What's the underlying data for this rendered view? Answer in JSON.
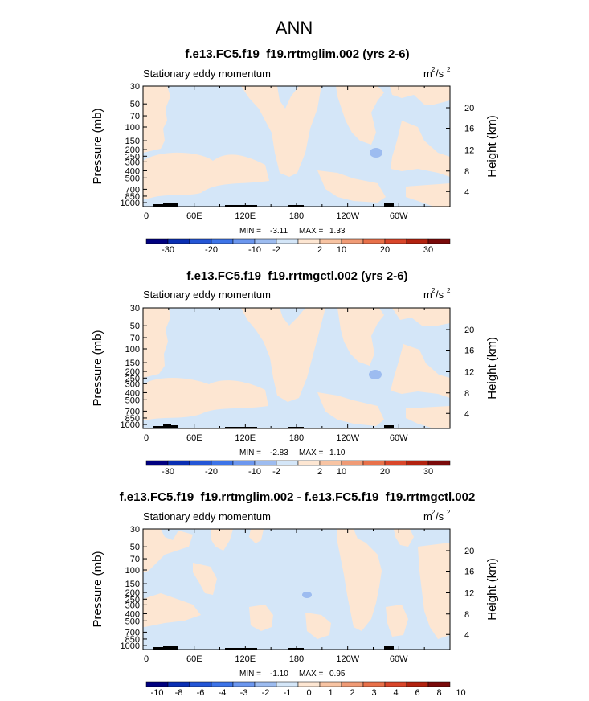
{
  "page_title": "ANN",
  "units_label": {
    "base": "m",
    "exp1": "2",
    "mid": "/s",
    "exp2": "2"
  },
  "colors": {
    "positive_fill": "#fde6d2",
    "negative_fill": "#d4e6f8",
    "strong_negative_fill": "#9dbcf0",
    "topography": "#000000",
    "colorbar": [
      "#00007f",
      "#0a2fb3",
      "#2456d6",
      "#3d74e8",
      "#6c97ef",
      "#9dbcf0",
      "#d4e6f8",
      "#fde6d2",
      "#f8c4a3",
      "#f09b76",
      "#e8714a",
      "#d9462a",
      "#b2220f",
      "#7a0a0a"
    ]
  },
  "chart_data": [
    {
      "type": "heatmap",
      "title": "f.e13.FC5.f19_f19.rrtmglim.002 (yrs 2-6)",
      "subtitle": "Stationary eddy momentum",
      "ylabel": "Pressure  (mb)",
      "ylabel_right": "Height  (km)",
      "x_tick_labels": [
        "0",
        "60E",
        "120E",
        "180",
        "120W",
        "60W"
      ],
      "y_tick_labels": [
        "30",
        "50",
        "70",
        "100",
        "150",
        "200",
        "250",
        "300",
        "400",
        "500",
        "700",
        "850",
        "1000"
      ],
      "y_right_tick_labels": [
        "20",
        "16",
        "12",
        "8",
        "4"
      ],
      "min_label": "MIN =",
      "min_value": "-3.11",
      "max_label": "MAX =",
      "max_value": "1.33",
      "colorbar_tick_labels": [
        "-30",
        "-20",
        "-10",
        "-2",
        "2",
        "10",
        "20",
        "30"
      ]
    },
    {
      "type": "heatmap",
      "title": "f.e13.FC5.f19_f19.rrtmgctl.002 (yrs 2-6)",
      "subtitle": "Stationary eddy momentum",
      "ylabel": "Pressure  (mb)",
      "ylabel_right": "Height  (km)",
      "x_tick_labels": [
        "0",
        "60E",
        "120E",
        "180",
        "120W",
        "60W"
      ],
      "y_tick_labels": [
        "30",
        "50",
        "70",
        "100",
        "150",
        "200",
        "250",
        "300",
        "400",
        "500",
        "700",
        "850",
        "1000"
      ],
      "y_right_tick_labels": [
        "20",
        "16",
        "12",
        "8",
        "4"
      ],
      "min_label": "MIN =",
      "min_value": "-2.83",
      "max_label": "MAX =",
      "max_value": "1.10",
      "colorbar_tick_labels": [
        "-30",
        "-20",
        "-10",
        "-2",
        "2",
        "10",
        "20",
        "30"
      ]
    },
    {
      "type": "heatmap",
      "title": "f.e13.FC5.f19_f19.rrtmglim.002 - f.e13.FC5.f19_f19.rrtmgctl.002",
      "subtitle": "Stationary eddy momentum",
      "ylabel": "Pressure  (mb)",
      "ylabel_right": "Height  (km)",
      "x_tick_labels": [
        "0",
        "60E",
        "120E",
        "180",
        "120W",
        "60W"
      ],
      "y_tick_labels": [
        "30",
        "50",
        "70",
        "100",
        "150",
        "200",
        "250",
        "300",
        "400",
        "500",
        "700",
        "850",
        "1000"
      ],
      "y_right_tick_labels": [
        "20",
        "16",
        "12",
        "8",
        "4"
      ],
      "min_label": "MIN =",
      "min_value": "-1.10",
      "max_label": "MAX =",
      "max_value": "0.95",
      "colorbar_tick_labels": [
        "-10",
        "-8",
        "-6",
        "-4",
        "-3",
        "-2",
        "-1",
        "0",
        "1",
        "2",
        "3",
        "4",
        "6",
        "8",
        "10"
      ]
    }
  ]
}
